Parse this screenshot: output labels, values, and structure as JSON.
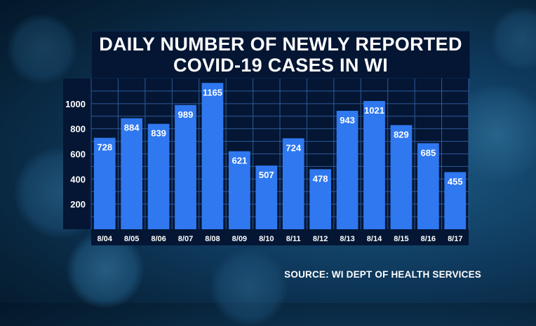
{
  "chart_data": {
    "type": "bar",
    "title_line1": "DAILY NUMBER OF NEWLY REPORTED",
    "title_line2": "COVID-19 CASES IN WI",
    "categories": [
      "8/04",
      "8/05",
      "8/06",
      "8/07",
      "8/08",
      "8/09",
      "8/10",
      "8/11",
      "8/12",
      "8/13",
      "8/14",
      "8/15",
      "8/16",
      "8/17"
    ],
    "values": [
      728,
      884,
      839,
      989,
      1165,
      621,
      507,
      724,
      478,
      943,
      1021,
      829,
      685,
      455
    ],
    "value_labels": [
      "728",
      "884",
      "839",
      "989",
      "1165",
      "621",
      "507",
      "724",
      "478",
      "943",
      "1021",
      "829",
      "685",
      "455"
    ],
    "yticks": [
      200,
      400,
      600,
      800,
      1000
    ],
    "ytick_labels": [
      "200",
      "400",
      "600",
      "800",
      "1000"
    ],
    "ylim": [
      0,
      1200
    ],
    "xlabel": "",
    "ylabel": "",
    "grid": true,
    "colors": {
      "bar": "#2f78f0",
      "panel": "#041633",
      "grid": "#2d5a9a",
      "text": "#ffffff"
    }
  },
  "source": "SOURCE: WI DEPT OF HEALTH SERVICES"
}
